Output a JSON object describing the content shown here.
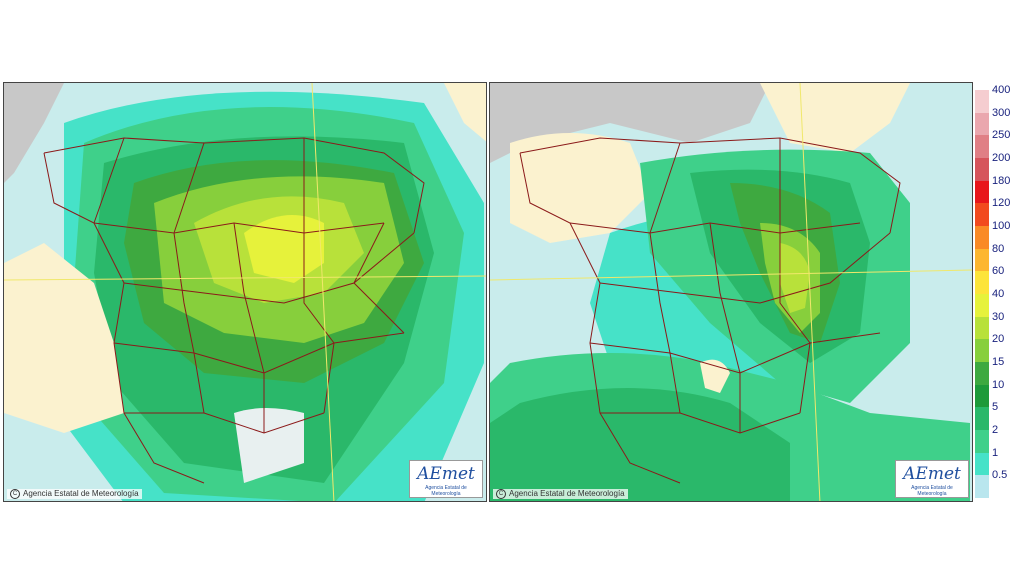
{
  "maps": [
    {
      "copyright": "Agencia Estatal de Meteorología",
      "logo": {
        "wordmark": "AEmet",
        "subtitle": "Agencia Estatal de Meteorología"
      }
    },
    {
      "copyright": "Agencia Estatal de Meteorología",
      "logo": {
        "wordmark": "AEmet",
        "subtitle": "Agencia Estatal de Meteorología"
      }
    }
  ],
  "legend": {
    "levels": [
      {
        "label": "400",
        "color": "#f5cdd0"
      },
      {
        "label": "300",
        "color": "#eaa7ae"
      },
      {
        "label": "250",
        "color": "#e07f85"
      },
      {
        "label": "200",
        "color": "#d6545b"
      },
      {
        "label": "180",
        "color": "#e8161b"
      },
      {
        "label": "120",
        "color": "#f24a1e"
      },
      {
        "label": "100",
        "color": "#fa8a25"
      },
      {
        "label": "80",
        "color": "#fdb62f"
      },
      {
        "label": "60",
        "color": "#fde43a"
      },
      {
        "label": "40",
        "color": "#e6f23b"
      },
      {
        "label": "30",
        "color": "#b8e13a"
      },
      {
        "label": "20",
        "color": "#87cf3c"
      },
      {
        "label": "15",
        "color": "#3ea940"
      },
      {
        "label": "10",
        "color": "#1e9a3a"
      },
      {
        "label": "5",
        "color": "#2ab86a"
      },
      {
        "label": "2",
        "color": "#3fd08a"
      },
      {
        "label": "1",
        "color": "#46e2c8"
      },
      {
        "label": "0.5",
        "color": "#b9e6ee"
      }
    ]
  }
}
